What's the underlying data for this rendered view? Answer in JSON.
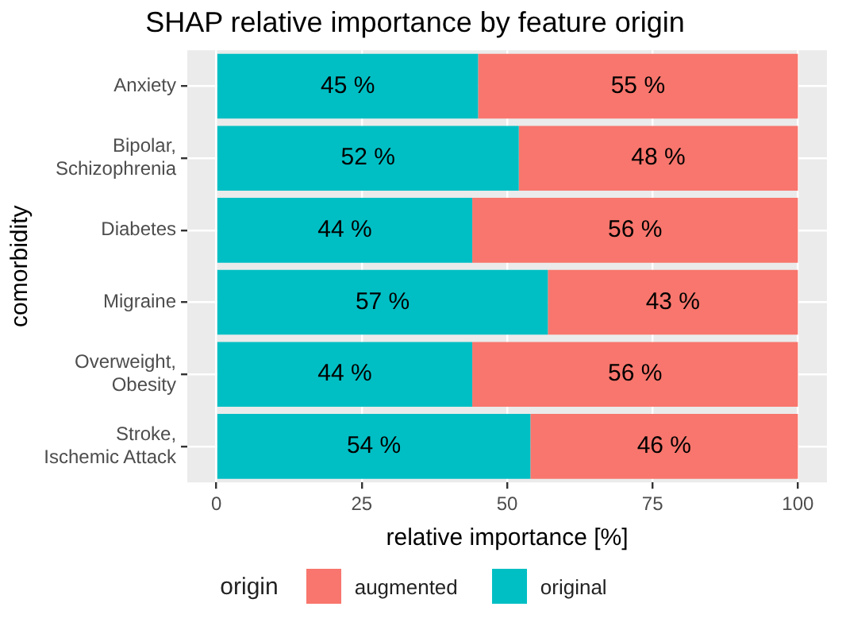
{
  "chart_data": {
    "type": "bar",
    "orientation": "horizontal",
    "stacked": true,
    "title": "SHAP relative importance by feature origin",
    "xlabel": "relative importance [%]",
    "ylabel": "comorbidity",
    "legend_title": "origin",
    "legend": "bottom",
    "grid": true,
    "categories": [
      "Anxiety",
      "Bipolar,\nSchizophrenia",
      "Diabetes",
      "Migraine",
      "Overweight,\nObesity",
      "Stroke,\nIschemic Attack"
    ],
    "xlim": [
      -5,
      105
    ],
    "xticks": [
      0,
      25,
      50,
      75,
      100
    ],
    "series": [
      {
        "name": "original",
        "color": "#00bfc4",
        "values": [
          45,
          52,
          44,
          57,
          44,
          54
        ],
        "value_labels": [
          "45 %",
          "52 %",
          "44 %",
          "57 %",
          "44 %",
          "54 %"
        ]
      },
      {
        "name": "augmented",
        "color": "#f8766d",
        "values": [
          55,
          48,
          56,
          43,
          56,
          46
        ],
        "value_labels": [
          "55 %",
          "48 %",
          "56 %",
          "43 %",
          "56 %",
          "46 %"
        ]
      }
    ]
  }
}
